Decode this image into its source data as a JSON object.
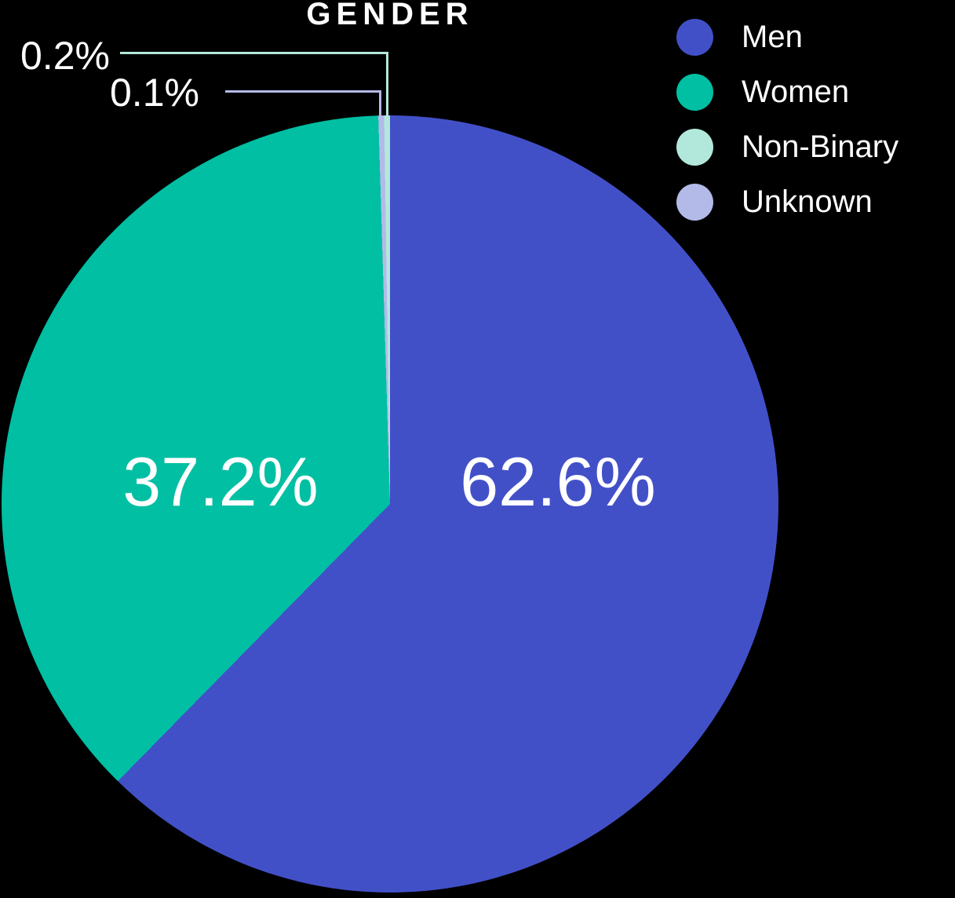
{
  "canvas_bg": "#000000",
  "text_color": "#FFFFFF",
  "chart_data": {
    "type": "pie",
    "title": "GENDER",
    "legend_position": "top-right",
    "direction": "clockwise",
    "start_angle_deg": 0,
    "grid": false,
    "slices": [
      {
        "label": "Men",
        "value": 62.6,
        "display": "62.6%",
        "color": "#4250C8",
        "label_style": "inside"
      },
      {
        "label": "Women",
        "value": 37.2,
        "display": "37.2%",
        "color": "#00BFA3",
        "label_style": "inside"
      },
      {
        "label": "Non-Binary",
        "value": 0.2,
        "display": "0.2%",
        "color": "#B2E8DB",
        "label_style": "callout"
      },
      {
        "label": "Unknown",
        "value": 0.1,
        "display": "0.1%",
        "color": "#B3BAE8",
        "label_style": "callout"
      }
    ],
    "draw_order": [
      "Men",
      "Women",
      "Unknown",
      "Non-Binary"
    ]
  }
}
